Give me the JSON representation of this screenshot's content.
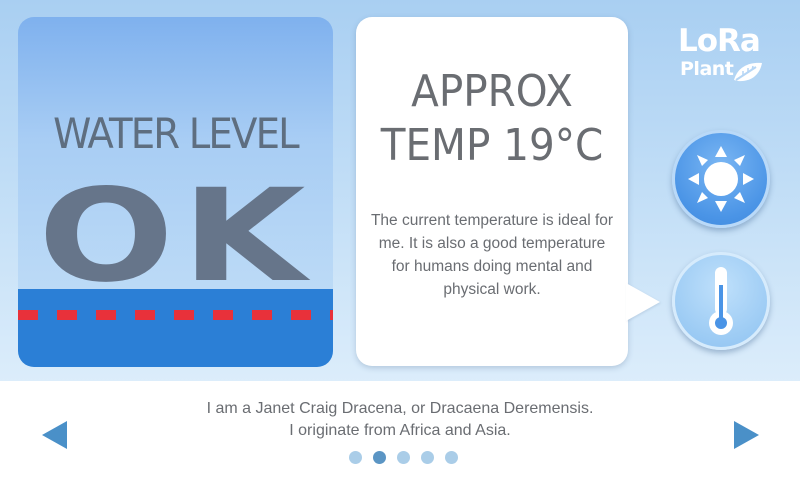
{
  "water_level": {
    "title": "WATER LEVEL",
    "status": "OK"
  },
  "temperature": {
    "title_line1": "APPROX",
    "title_line2": "TEMP 19°C",
    "description": "The current temperature is ideal for me. It is also a good temperature for humans doing mental and physical work."
  },
  "logo": {
    "line1": "LoRa",
    "line2": "Plant"
  },
  "buttons": [
    {
      "name": "sun-button",
      "icon": "sun-icon"
    },
    {
      "name": "thermometer-button",
      "icon": "thermometer-icon",
      "selected": true
    }
  ],
  "caption": {
    "line1": "I am a Janet Craig Dracena, or Dracaena Deremensis.",
    "line2": "I originate from Africa and Asia."
  },
  "pagination": {
    "count": 5,
    "active_index": 1
  },
  "colors": {
    "water": "#2b7fd6",
    "water_line": "#e8313a",
    "accent": "#4a90c8",
    "text": "#6a6d72"
  }
}
